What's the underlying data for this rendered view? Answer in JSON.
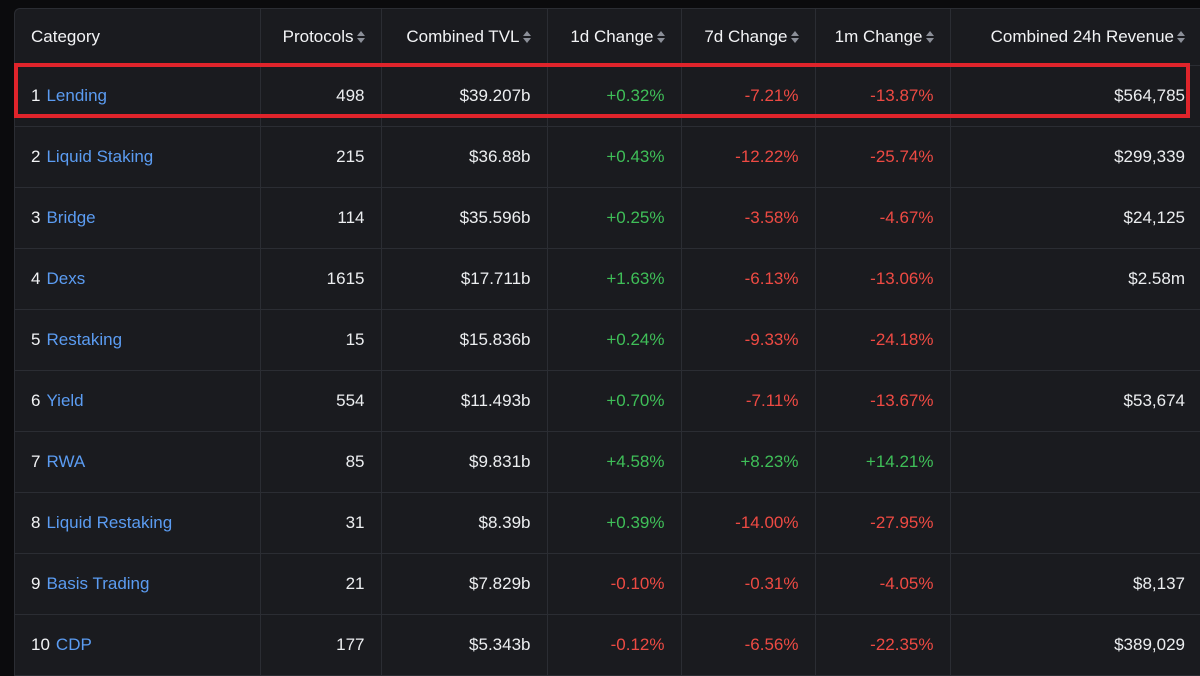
{
  "headers": {
    "category": "Category",
    "protocols": "Protocols",
    "tvl": "Combined TVL",
    "d1": "1d Change",
    "d7": "7d Change",
    "m1": "1m Change",
    "revenue": "Combined 24h Revenue"
  },
  "rows": [
    {
      "rank": "1",
      "name": "Lending",
      "protocols": "498",
      "tvl": "$39.207b",
      "d1": "+0.32%",
      "d7": "-7.21%",
      "m1": "-13.87%",
      "revenue": "$564,785"
    },
    {
      "rank": "2",
      "name": "Liquid Staking",
      "protocols": "215",
      "tvl": "$36.88b",
      "d1": "+0.43%",
      "d7": "-12.22%",
      "m1": "-25.74%",
      "revenue": "$299,339"
    },
    {
      "rank": "3",
      "name": "Bridge",
      "protocols": "114",
      "tvl": "$35.596b",
      "d1": "+0.25%",
      "d7": "-3.58%",
      "m1": "-4.67%",
      "revenue": "$24,125"
    },
    {
      "rank": "4",
      "name": "Dexs",
      "protocols": "1615",
      "tvl": "$17.711b",
      "d1": "+1.63%",
      "d7": "-6.13%",
      "m1": "-13.06%",
      "revenue": "$2.58m"
    },
    {
      "rank": "5",
      "name": "Restaking",
      "protocols": "15",
      "tvl": "$15.836b",
      "d1": "+0.24%",
      "d7": "-9.33%",
      "m1": "-24.18%",
      "revenue": ""
    },
    {
      "rank": "6",
      "name": "Yield",
      "protocols": "554",
      "tvl": "$11.493b",
      "d1": "+0.70%",
      "d7": "-7.11%",
      "m1": "-13.67%",
      "revenue": "$53,674"
    },
    {
      "rank": "7",
      "name": "RWA",
      "protocols": "85",
      "tvl": "$9.831b",
      "d1": "+4.58%",
      "d7": "+8.23%",
      "m1": "+14.21%",
      "revenue": ""
    },
    {
      "rank": "8",
      "name": "Liquid Restaking",
      "protocols": "31",
      "tvl": "$8.39b",
      "d1": "+0.39%",
      "d7": "-14.00%",
      "m1": "-27.95%",
      "revenue": ""
    },
    {
      "rank": "9",
      "name": "Basis Trading",
      "protocols": "21",
      "tvl": "$7.829b",
      "d1": "-0.10%",
      "d7": "-0.31%",
      "m1": "-4.05%",
      "revenue": "$8,137"
    },
    {
      "rank": "10",
      "name": "CDP",
      "protocols": "177",
      "tvl": "$5.343b",
      "d1": "-0.12%",
      "d7": "-6.56%",
      "m1": "-22.35%",
      "revenue": "$389,029"
    }
  ],
  "colors": {
    "positive": "#3fbf58",
    "negative": "#ee4a43",
    "link": "#5b9cf2",
    "highlight": "#e0242b"
  }
}
